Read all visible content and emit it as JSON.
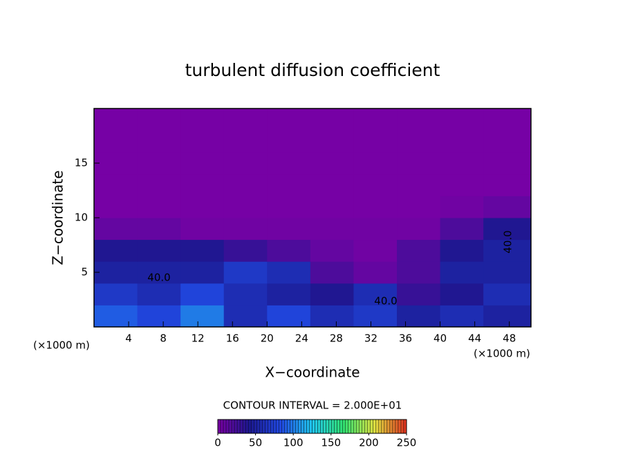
{
  "chart_data": {
    "type": "heatmap",
    "title": "turbulent diffusion coefficient",
    "x_label": "X−coordinate",
    "y_label": "Z−coordinate",
    "x_unit": "(×1000 m)",
    "xlim": [
      0,
      50.5
    ],
    "ylim": [
      0,
      20
    ],
    "xticks": [
      4,
      8,
      12,
      16,
      20,
      24,
      28,
      32,
      36,
      40,
      44,
      48
    ],
    "yticks": [
      5,
      10,
      15
    ],
    "x": [
      2.5,
      7.5,
      12.5,
      17.5,
      22.5,
      27.5,
      32.5,
      37.5,
      42.5,
      47.5
    ],
    "y": [
      1,
      3,
      5,
      7,
      9,
      11,
      13,
      15,
      17,
      19
    ],
    "z": [
      [
        90,
        80,
        100,
        60,
        80,
        60,
        70,
        50,
        60,
        50
      ],
      [
        70,
        60,
        80,
        60,
        50,
        40,
        60,
        30,
        40,
        60
      ],
      [
        50,
        50,
        50,
        70,
        60,
        20,
        10,
        20,
        50,
        50
      ],
      [
        40,
        40,
        40,
        30,
        20,
        10,
        5,
        20,
        40,
        50
      ],
      [
        10,
        10,
        5,
        5,
        5,
        5,
        5,
        5,
        20,
        40
      ],
      [
        2,
        2,
        2,
        2,
        2,
        2,
        2,
        2,
        5,
        10
      ],
      [
        2,
        2,
        2,
        2,
        2,
        2,
        2,
        2,
        2,
        2
      ],
      [
        2,
        2,
        2,
        2,
        2,
        2,
        2,
        2,
        2,
        2
      ],
      [
        2,
        2,
        2,
        2,
        2,
        2,
        2,
        2,
        2,
        2
      ],
      [
        2,
        2,
        2,
        2,
        2,
        2,
        2,
        2,
        2,
        2
      ]
    ],
    "annotations": [
      "40.0",
      "40.0",
      "40.0"
    ],
    "colorbar": {
      "label": "CONTOUR INTERVAL = 2.000E+01",
      "lim": [
        0,
        250
      ],
      "ticks": [
        0,
        50,
        100,
        150,
        200,
        250
      ],
      "colors": [
        "#7b00a6",
        "#1c1890",
        "#2048e0",
        "#20c8f0",
        "#30e070",
        "#e0e040",
        "#e03020"
      ]
    }
  }
}
